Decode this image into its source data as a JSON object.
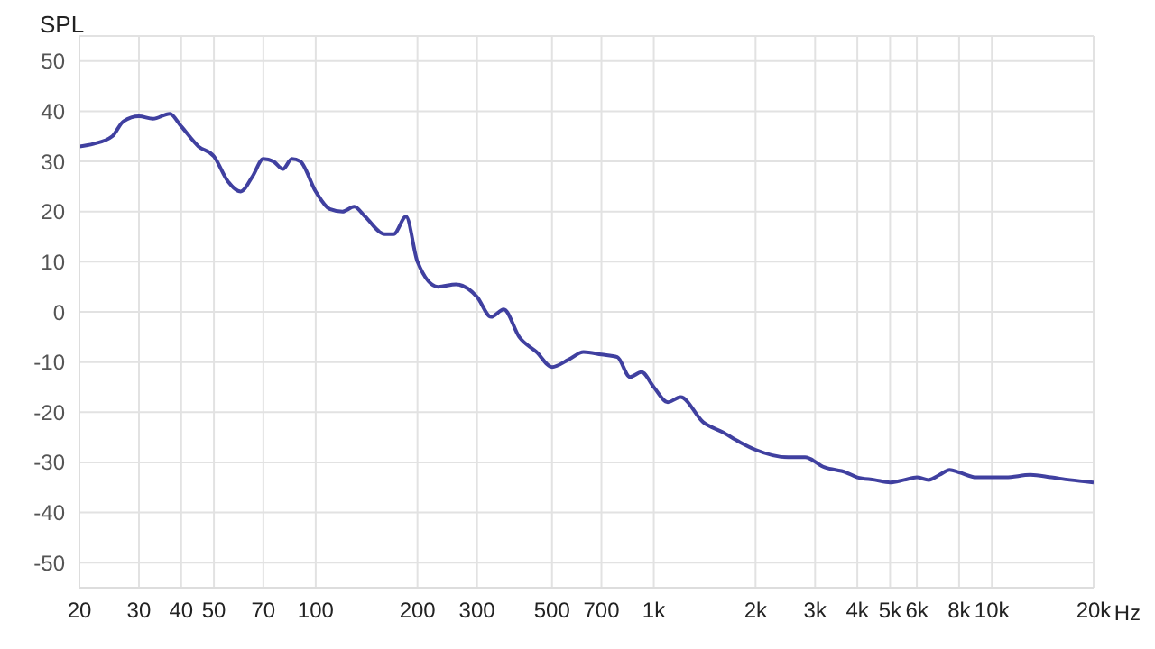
{
  "chart_data": {
    "type": "line",
    "ylabel": "SPL",
    "log": "x",
    "grid": true,
    "marker": "none",
    "line_style": "solid",
    "xlim": [
      20,
      20000
    ],
    "ylim": [
      -55,
      55
    ],
    "xticks": [
      20,
      30,
      40,
      50,
      70,
      100,
      200,
      300,
      500,
      700,
      {
        "value": 1000,
        "label": "1k"
      },
      {
        "value": 2000,
        "label": "2k"
      },
      {
        "value": 3000,
        "label": "3k"
      },
      {
        "value": 4000,
        "label": "4k"
      },
      {
        "value": 5000,
        "label": "5k"
      },
      {
        "value": 6000,
        "label": "6k"
      },
      {
        "value": 8000,
        "label": "8k"
      },
      {
        "value": 10000,
        "label": "10k"
      },
      {
        "value": 20000,
        "label": "20k"
      }
    ],
    "xlabel": "Hz",
    "yticks": [
      -50,
      -40,
      -30,
      -20,
      -10,
      0,
      10,
      20,
      30,
      40,
      50
    ],
    "x": [
      20,
      22,
      25,
      27,
      30,
      33,
      37,
      40,
      45,
      50,
      55,
      60,
      65,
      70,
      75,
      80,
      85,
      90,
      100,
      110,
      120,
      130,
      140,
      160,
      170,
      185,
      200,
      230,
      260,
      300,
      330,
      360,
      400,
      450,
      500,
      560,
      620,
      700,
      780,
      850,
      920,
      1000,
      1100,
      1200,
      1400,
      1600,
      1800,
      2000,
      2500,
      2800,
      3200,
      3700,
      4000,
      4500,
      5000,
      5500,
      6000,
      6500,
      7000,
      7500,
      8000,
      9000,
      10000,
      11000,
      13000,
      15000,
      17000,
      20000
    ],
    "series": [
      {
        "color": "#4040a0",
        "values": [
          33,
          33.5,
          35,
          38,
          39,
          38.5,
          39.5,
          37,
          33,
          31,
          26,
          24,
          27,
          30.5,
          30,
          28.5,
          30.5,
          30,
          24,
          20.5,
          20,
          21,
          19,
          15.5,
          15.5,
          19,
          10,
          5,
          5.5,
          3,
          -1,
          0.5,
          -5,
          -8,
          -11,
          -9.5,
          -8,
          -8.5,
          -9,
          -13,
          -12,
          -15,
          -18,
          -17,
          -22,
          -24,
          -26,
          -27.5,
          -29,
          -29,
          -31,
          -32,
          -33,
          -33.5,
          -34,
          -33.5,
          -33,
          -33.5,
          -32.5,
          -31.5,
          -32,
          -33,
          -33,
          -33,
          -32.5,
          -33,
          -33.5,
          -34
        ]
      }
    ]
  }
}
